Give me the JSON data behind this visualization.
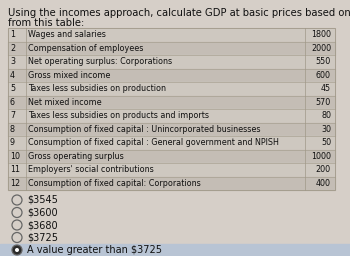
{
  "title_line1": "Using the incomes approach, calculate GDP at basic prices based on the numbers",
  "title_line2": "from this table:",
  "title_fontsize": 7.2,
  "table_rows": [
    {
      "num": "1",
      "label": "Wages and salaries",
      "value": "1800"
    },
    {
      "num": "2",
      "label": "Compensation of employees",
      "value": "2000"
    },
    {
      "num": "3",
      "label": "Net operating surplus: Corporations",
      "value": "550"
    },
    {
      "num": "4",
      "label": "Gross mixed income",
      "value": "600"
    },
    {
      "num": "5",
      "label": "Taxes less subsidies on production",
      "value": "45"
    },
    {
      "num": "6",
      "label": "Net mixed income",
      "value": "570"
    },
    {
      "num": "7",
      "label": "Taxes less subsidies on products and imports",
      "value": "80"
    },
    {
      "num": "8",
      "label": "Consumption of fixed capital : Unincorporated businesses",
      "value": "30"
    },
    {
      "num": "9",
      "label": "Consumption of fixed capital : General government and NPISH",
      "value": "50"
    },
    {
      "num": "10",
      "label": "Gross operating surplus",
      "value": "1000"
    },
    {
      "num": "11",
      "label": "Employers' social contributions",
      "value": "200"
    },
    {
      "num": "12",
      "label": "Consumption of fixed capital: Corporations",
      "value": "400"
    }
  ],
  "options": [
    {
      "text": "$3545",
      "selected": false
    },
    {
      "text": "$3600",
      "selected": false
    },
    {
      "text": "$3680",
      "selected": false
    },
    {
      "text": "$3725",
      "selected": false
    },
    {
      "text": "A value greater than $3725",
      "selected": true
    }
  ],
  "bg_color": "#d6cfc8",
  "table_bg_light": "#cec8c0",
  "table_bg_dark": "#c4bdb5",
  "table_border": "#a09888",
  "text_color": "#111111",
  "label_font_size": 5.8,
  "num_font_size": 5.8,
  "value_font_size": 5.8,
  "option_font_size": 7.0,
  "selected_row_bg": "#b8c4d4"
}
